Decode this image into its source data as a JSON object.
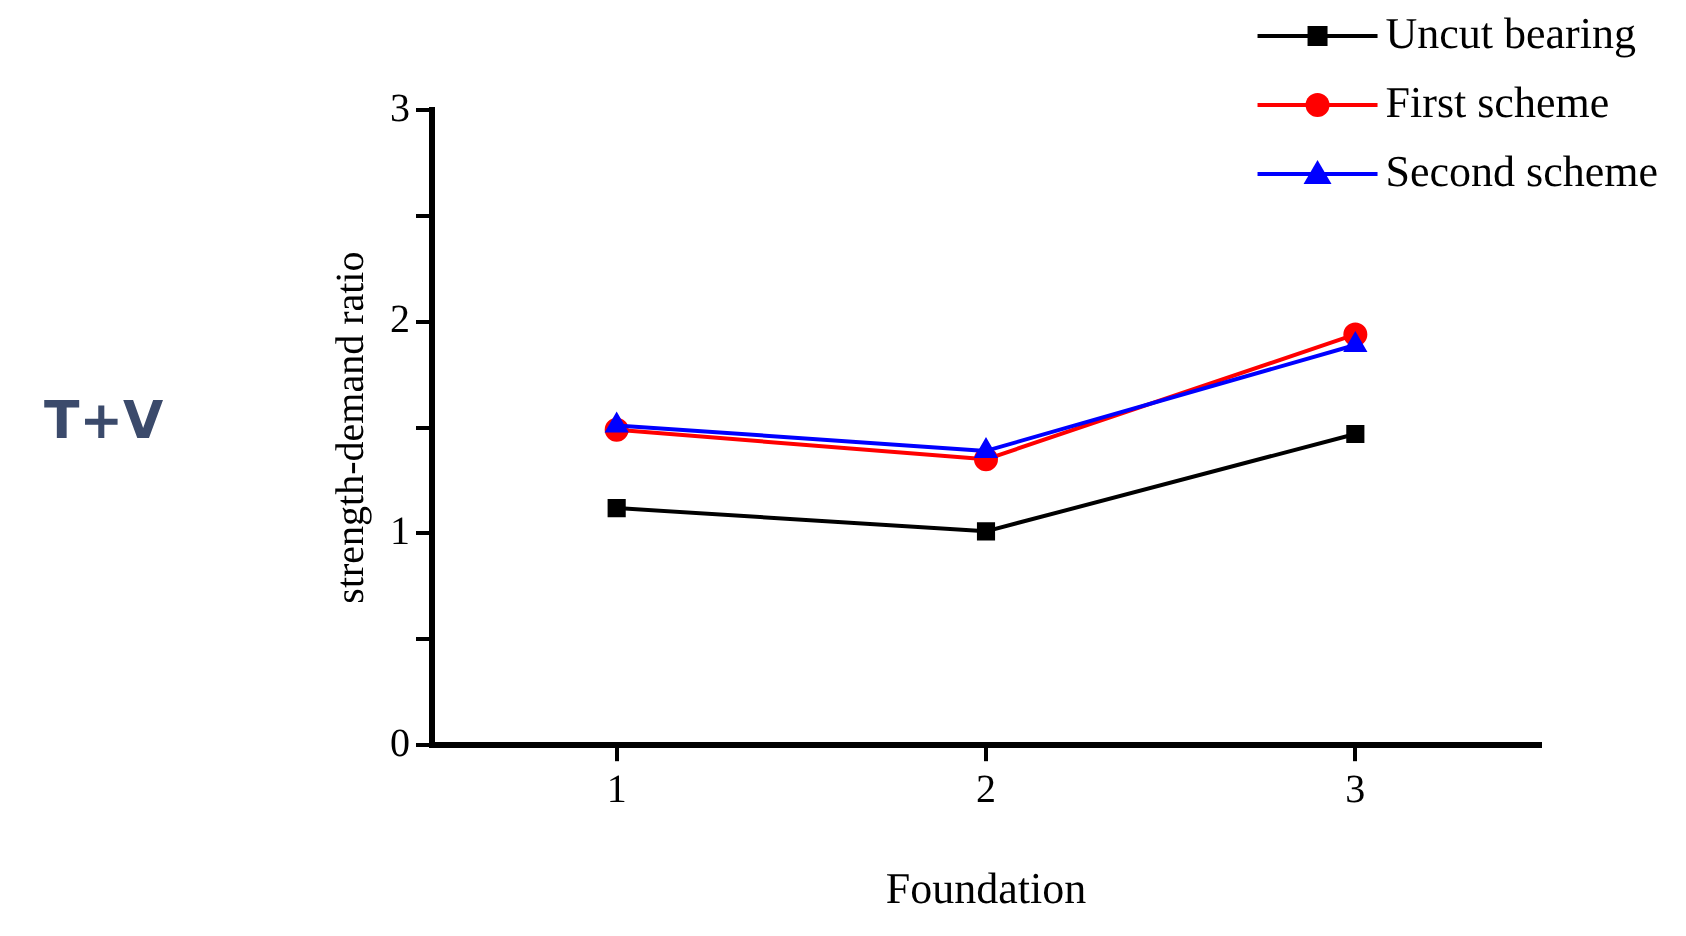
{
  "chart_data": {
    "type": "line",
    "xlabel": "Foundation",
    "ylabel": "strength-demand ratio",
    "annotations": [
      "T+V"
    ],
    "x": [
      1,
      2,
      3
    ],
    "xlim": [
      0.5,
      3.5
    ],
    "xticks": [
      1,
      2,
      3
    ],
    "ylim": [
      0,
      3
    ],
    "yticks": [
      0,
      {
        "value": 0.5,
        "label": null
      },
      1,
      {
        "value": 1.5,
        "label": null
      },
      2,
      {
        "value": 2.5,
        "label": null
      },
      3
    ],
    "series": [
      {
        "name": "Uncut bearing",
        "color": "#000000",
        "marker": "square",
        "values": [
          1.12,
          1.01,
          1.47
        ]
      },
      {
        "name": "First scheme",
        "color": "#ff0000",
        "marker": "circle",
        "values": [
          1.49,
          1.35,
          1.94
        ]
      },
      {
        "name": "Second scheme",
        "color": "#0000ff",
        "marker": "triangle",
        "values": [
          1.51,
          1.39,
          1.89
        ]
      }
    ],
    "grid": false,
    "legend": "top right",
    "line_style": "solid"
  }
}
